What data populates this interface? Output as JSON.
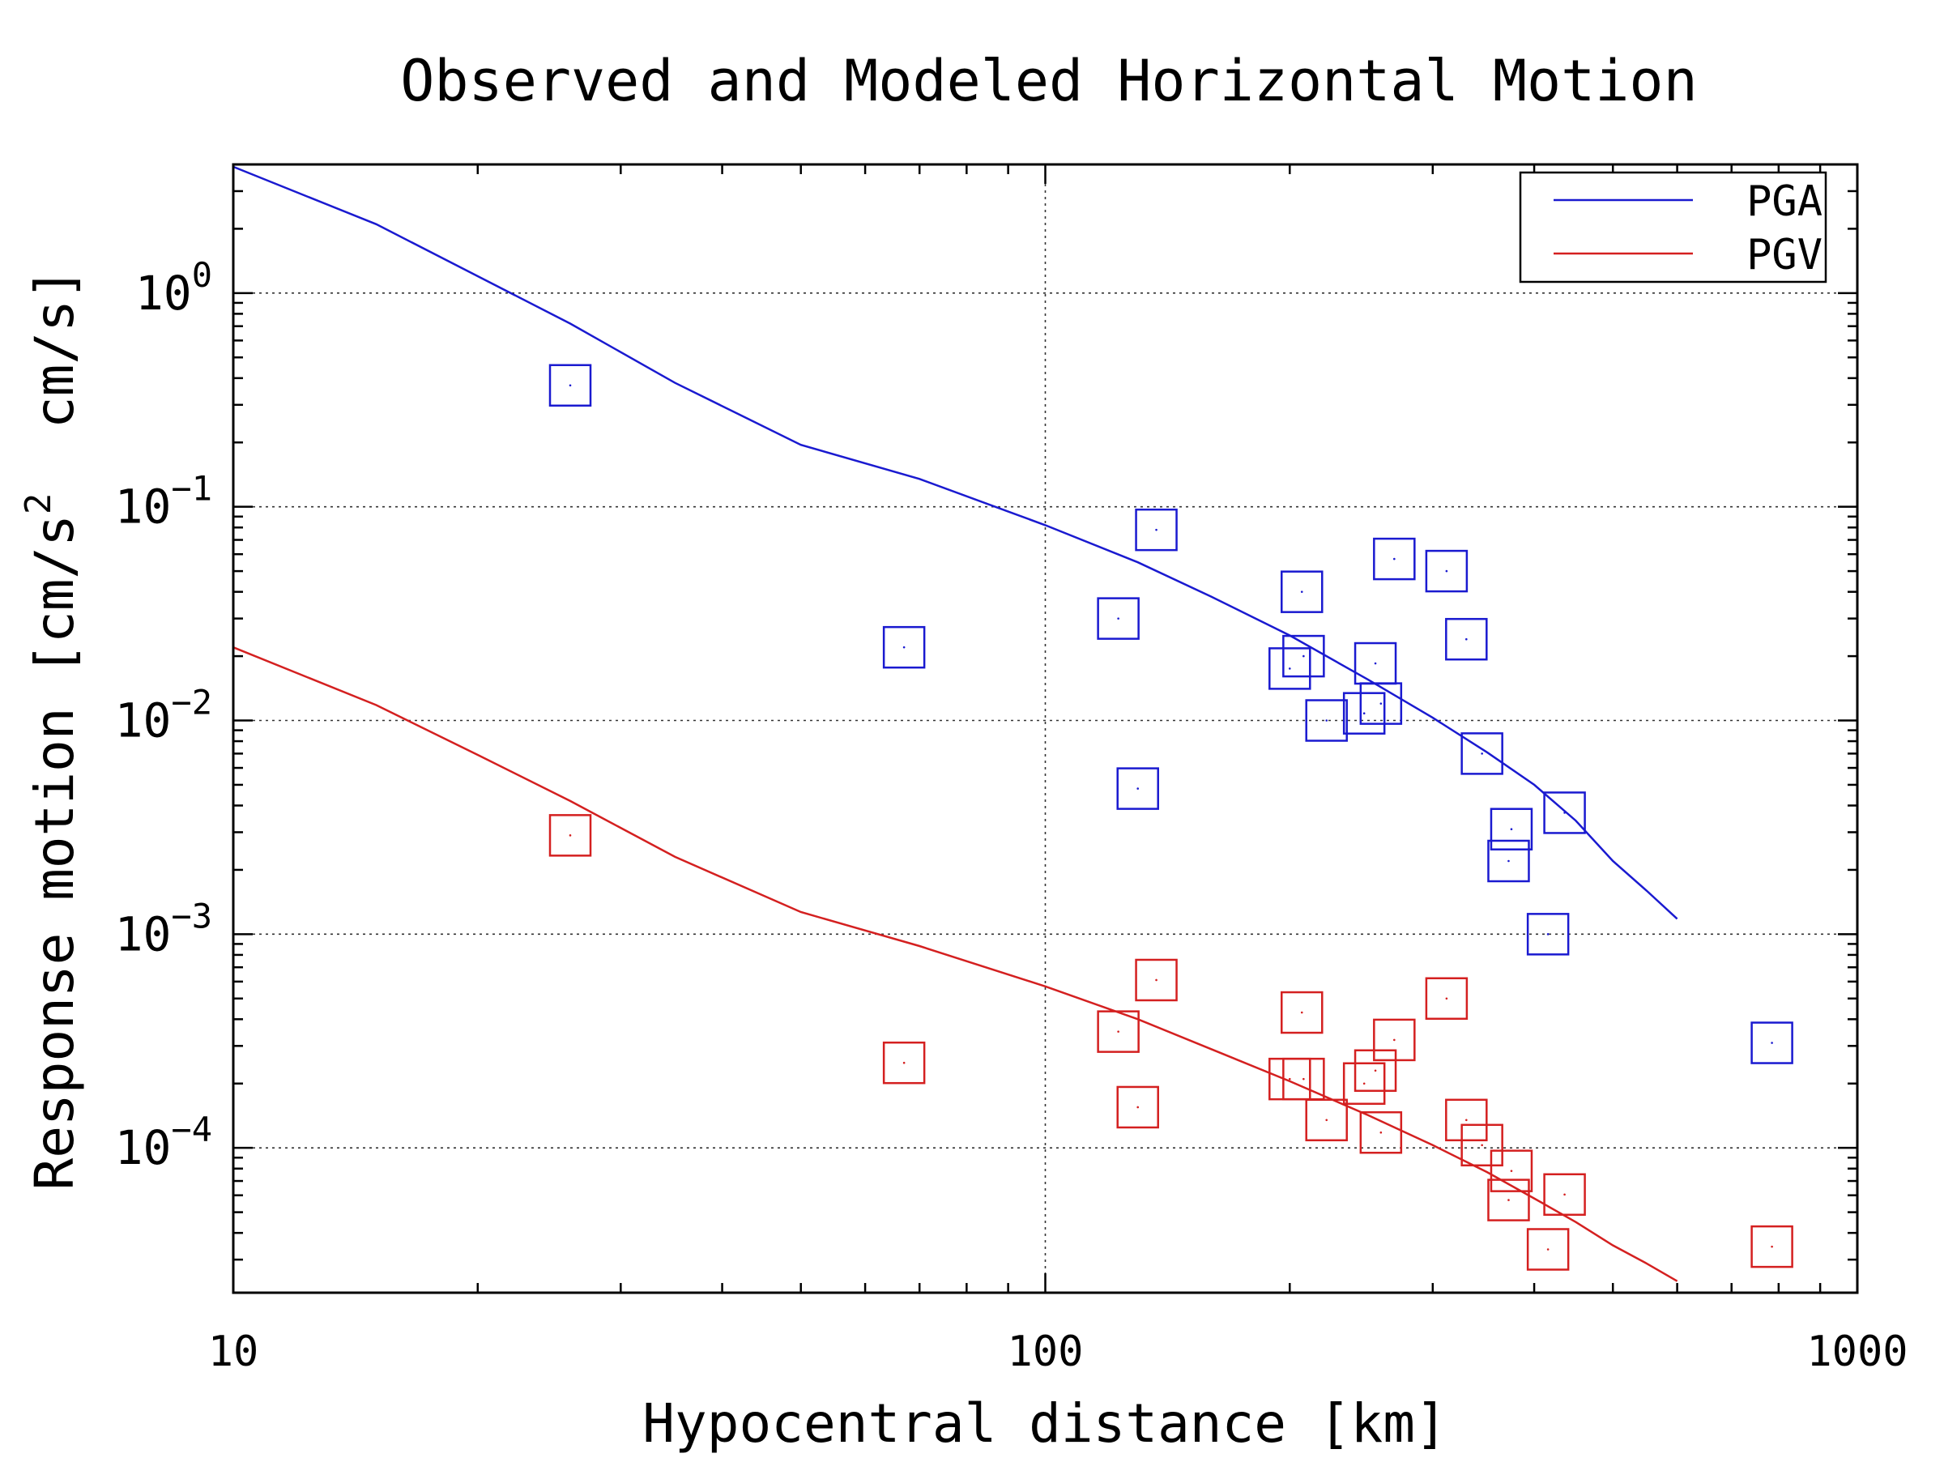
{
  "chart_data": {
    "type": "scatter",
    "title": "Observed and Modeled Horizontal Motion",
    "xlabel": "Hypocentral distance [km]",
    "ylabel": {
      "prefix": "Response motion [cm/s",
      "sup": "2",
      "suffix": "  cm/s]"
    },
    "x_scale": "log",
    "y_scale": "log",
    "xlim": [
      10,
      1000
    ],
    "ylim": [
      2.1e-05,
      4.0
    ],
    "grid": true,
    "legend_position": "top-right",
    "x_ticks": [
      {
        "value": 10,
        "label": "10"
      },
      {
        "value": 100,
        "label": "100"
      },
      {
        "value": 1000,
        "label": "1000"
      }
    ],
    "y_ticks": [
      {
        "value": 1,
        "base": "10",
        "exp": "0"
      },
      {
        "value": 0.1,
        "base": "10",
        "exp": "−1"
      },
      {
        "value": 0.01,
        "base": "10",
        "exp": "−2"
      },
      {
        "value": 0.001,
        "base": "10",
        "exp": "−3"
      },
      {
        "value": 0.0001,
        "base": "10",
        "exp": "−4"
      }
    ],
    "series": [
      {
        "name": "PGA",
        "color": "#1a1ad0",
        "model_x": [
          10,
          15,
          20,
          26,
          35,
          50,
          70,
          100,
          130,
          160,
          200,
          250,
          300,
          350,
          400,
          450,
          500,
          550,
          600
        ],
        "model_y": [
          3.9,
          2.1,
          1.2,
          0.72,
          0.38,
          0.195,
          0.135,
          0.082,
          0.055,
          0.038,
          0.025,
          0.0155,
          0.0103,
          0.0071,
          0.005,
          0.0034,
          0.0022,
          0.0016,
          0.00118
        ],
        "observed": [
          {
            "x": 26,
            "y": 0.37
          },
          {
            "x": 67,
            "y": 0.022
          },
          {
            "x": 123,
            "y": 0.03
          },
          {
            "x": 130,
            "y": 0.0048
          },
          {
            "x": 137,
            "y": 0.078
          },
          {
            "x": 200,
            "y": 0.0175
          },
          {
            "x": 207,
            "y": 0.04
          },
          {
            "x": 208,
            "y": 0.02
          },
          {
            "x": 222,
            "y": 0.01
          },
          {
            "x": 247,
            "y": 0.0108
          },
          {
            "x": 255,
            "y": 0.0185
          },
          {
            "x": 259,
            "y": 0.012
          },
          {
            "x": 269,
            "y": 0.057
          },
          {
            "x": 312,
            "y": 0.05
          },
          {
            "x": 330,
            "y": 0.024
          },
          {
            "x": 345,
            "y": 0.007
          },
          {
            "x": 372,
            "y": 0.0022
          },
          {
            "x": 375,
            "y": 0.0031
          },
          {
            "x": 416,
            "y": 0.001
          },
          {
            "x": 436,
            "y": 0.0037
          },
          {
            "x": 785,
            "y": 0.00031
          }
        ]
      },
      {
        "name": "PGV",
        "color": "#d42020",
        "model_x": [
          10,
          15,
          20,
          26,
          35,
          50,
          70,
          100,
          130,
          160,
          200,
          250,
          300,
          350,
          400,
          450,
          500,
          550,
          600
        ],
        "model_y": [
          0.022,
          0.0118,
          0.0069,
          0.0042,
          0.0023,
          0.00127,
          0.00088,
          0.00057,
          0.0004,
          0.00029,
          0.000205,
          0.000142,
          0.000103,
          7.7e-05,
          5.8e-05,
          4.5e-05,
          3.5e-05,
          2.88e-05,
          2.38e-05
        ],
        "observed": [
          {
            "x": 26,
            "y": 0.0029
          },
          {
            "x": 67,
            "y": 0.00025
          },
          {
            "x": 123,
            "y": 0.00035
          },
          {
            "x": 130,
            "y": 0.000155
          },
          {
            "x": 137,
            "y": 0.00061
          },
          {
            "x": 200,
            "y": 0.00021
          },
          {
            "x": 207,
            "y": 0.00043
          },
          {
            "x": 208,
            "y": 0.00021
          },
          {
            "x": 222,
            "y": 0.000135
          },
          {
            "x": 247,
            "y": 0.0002
          },
          {
            "x": 255,
            "y": 0.00023
          },
          {
            "x": 259,
            "y": 0.000118
          },
          {
            "x": 269,
            "y": 0.00032
          },
          {
            "x": 312,
            "y": 0.0005
          },
          {
            "x": 330,
            "y": 0.000135
          },
          {
            "x": 345,
            "y": 0.000103
          },
          {
            "x": 372,
            "y": 5.7e-05
          },
          {
            "x": 375,
            "y": 7.8e-05
          },
          {
            "x": 416,
            "y": 3.35e-05
          },
          {
            "x": 436,
            "y": 6.05e-05
          },
          {
            "x": 785,
            "y": 3.45e-05
          }
        ]
      }
    ]
  }
}
